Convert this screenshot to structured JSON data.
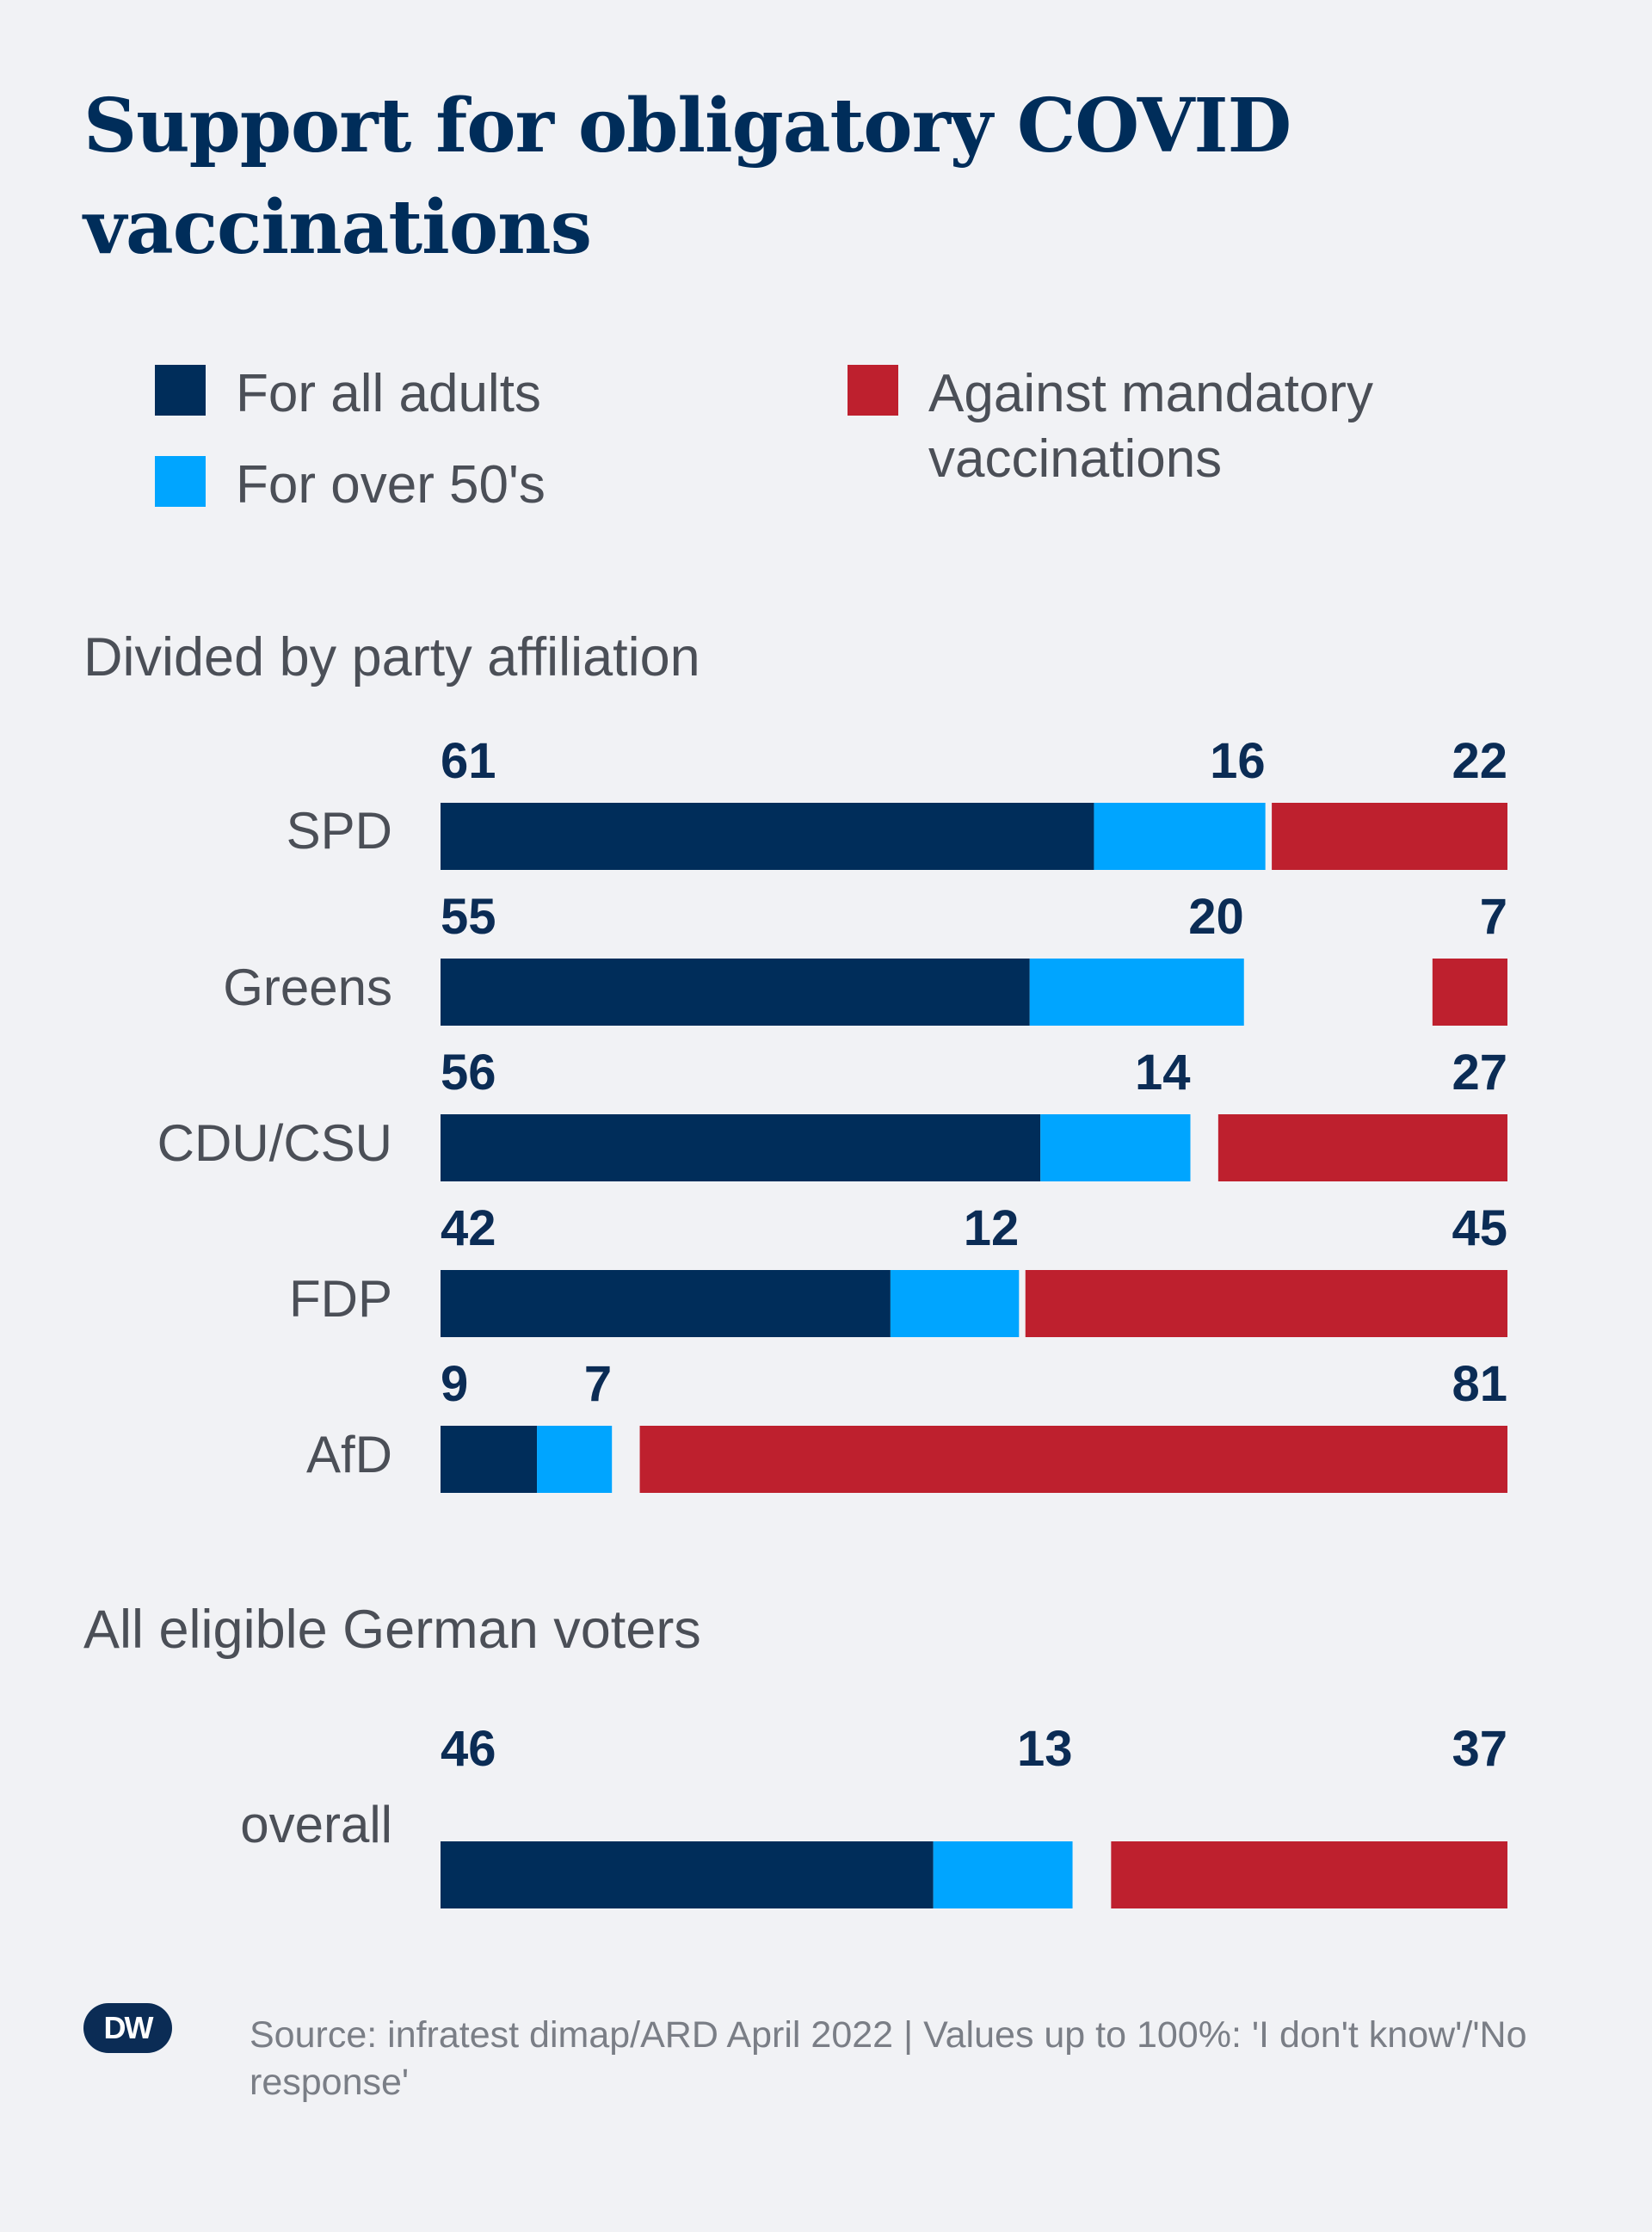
{
  "title": "Support for obligatory COVID vaccinations",
  "legend": {
    "for_all_adults": "For all adults",
    "for_over_50s": "For over 50's",
    "against": "Against mandatory vaccinations"
  },
  "sections": {
    "by_party": "Divided by party affiliation",
    "all_voters": "All eligible German voters"
  },
  "colors": {
    "for_all_adults": "#002d5a",
    "for_over_50s": "#00a5ff",
    "against": "#be202e",
    "background": "#f1f2f5",
    "title": "#002d5a"
  },
  "chart_data": {
    "type": "bar",
    "orientation": "horizontal-stacked",
    "series": [
      {
        "name": "For all adults",
        "values": [
          61,
          55,
          56,
          42,
          9,
          46
        ]
      },
      {
        "name": "For over 50's",
        "values": [
          16,
          20,
          14,
          12,
          7,
          13
        ]
      },
      {
        "name": "Against mandatory vaccinations",
        "values": [
          22,
          7,
          27,
          45,
          81,
          37
        ]
      }
    ],
    "categories": [
      "SPD",
      "Greens",
      "CDU/CSU",
      "FDP",
      "AfD",
      "overall"
    ],
    "xlim": [
      0,
      100
    ],
    "grid": false,
    "legend_position": "top"
  },
  "footer": {
    "logo_text": "DW",
    "source": "Source: infratest dimap/ARD April 2022 | Values up to 100%: 'I don't know'/'No response'"
  }
}
